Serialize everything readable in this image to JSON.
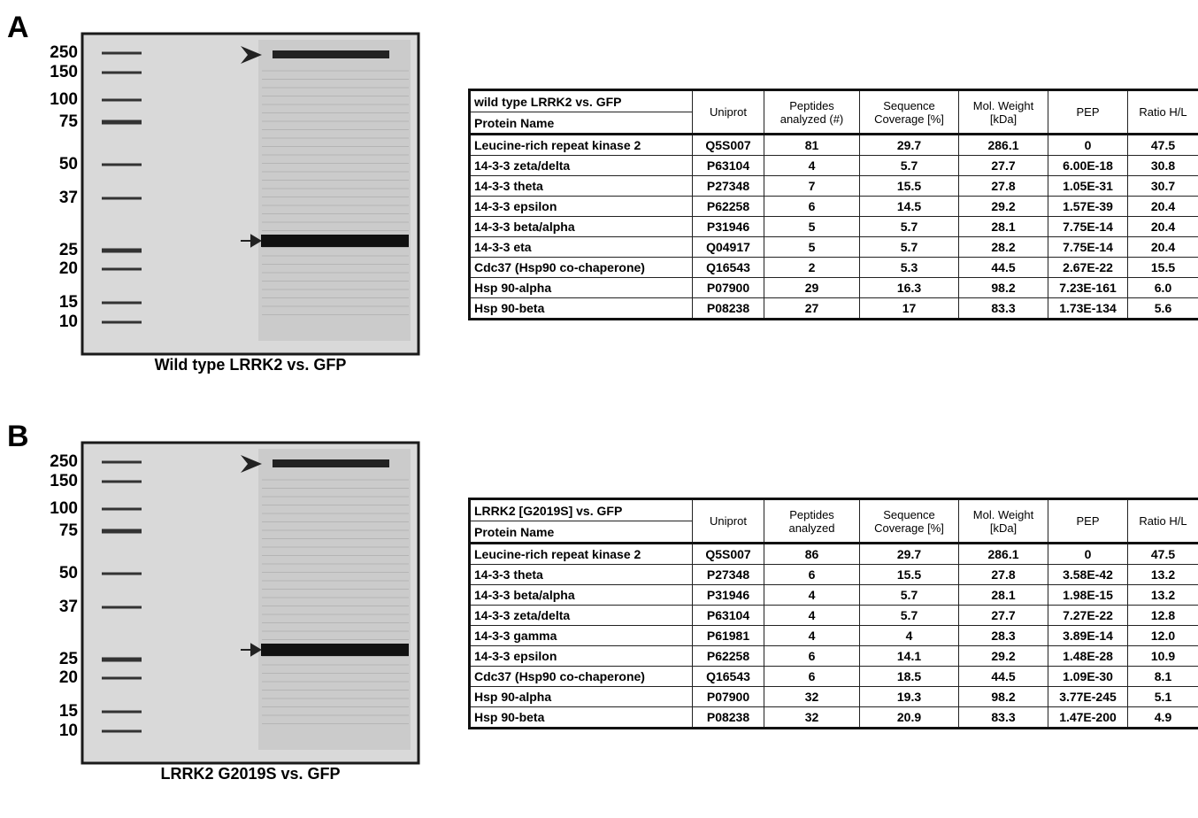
{
  "panels": [
    {
      "label": "A",
      "markers": [
        250,
        150,
        100,
        75,
        50,
        37,
        25,
        20,
        15,
        10
      ],
      "caption": "Wild type LRRK2 vs. GFP",
      "table": {
        "title": "wild type LRRK2 vs. GFP",
        "name_header": "Protein Name",
        "headers": [
          "Uniprot",
          "Peptides analyzed (#)",
          "Sequence Coverage [%]",
          "Mol. Weight [kDa]",
          "PEP",
          "Ratio H/L"
        ],
        "rows": [
          [
            "Leucine-rich repeat kinase 2",
            "Q5S007",
            "81",
            "29.7",
            "286.1",
            "0",
            "47.5"
          ],
          [
            "14-3-3 zeta/delta",
            "P63104",
            "4",
            "5.7",
            "27.7",
            "6.00E-18",
            "30.8"
          ],
          [
            "14-3-3 theta",
            "P27348",
            "7",
            "15.5",
            "27.8",
            "1.05E-31",
            "30.7"
          ],
          [
            "14-3-3 epsilon",
            "P62258",
            "6",
            "14.5",
            "29.2",
            "1.57E-39",
            "20.4"
          ],
          [
            "14-3-3 beta/alpha",
            "P31946",
            "5",
            "5.7",
            "28.1",
            "7.75E-14",
            "20.4"
          ],
          [
            "14-3-3 eta",
            "Q04917",
            "5",
            "5.7",
            "28.2",
            "7.75E-14",
            "20.4"
          ],
          [
            "Cdc37 (Hsp90 co-chaperone)",
            "Q16543",
            "2",
            "5.3",
            "44.5",
            "2.67E-22",
            "15.5"
          ],
          [
            "Hsp 90-alpha",
            "P07900",
            "29",
            "16.3",
            "98.2",
            "7.23E-161",
            "6.0"
          ],
          [
            "Hsp 90-beta",
            "P08238",
            "27",
            "17",
            "83.3",
            "1.73E-134",
            "5.6"
          ]
        ]
      }
    },
    {
      "label": "B",
      "markers": [
        250,
        150,
        100,
        75,
        50,
        37,
        25,
        20,
        15,
        10
      ],
      "caption": "LRRK2 G2019S vs. GFP",
      "table": {
        "title": "LRRK2 [G2019S] vs. GFP",
        "name_header": "Protein Name",
        "headers": [
          "Uniprot",
          "Peptides analyzed",
          "Sequence Coverage [%]",
          "Mol. Weight [kDa]",
          "PEP",
          "Ratio H/L"
        ],
        "rows": [
          [
            "Leucine-rich repeat kinase 2",
            "Q5S007",
            "86",
            "29.7",
            "286.1",
            "0",
            "47.5"
          ],
          [
            "14-3-3 theta",
            "P27348",
            "6",
            "15.5",
            "27.8",
            "3.58E-42",
            "13.2"
          ],
          [
            "14-3-3 beta/alpha",
            "P31946",
            "4",
            "5.7",
            "28.1",
            "1.98E-15",
            "13.2"
          ],
          [
            "14-3-3 zeta/delta",
            "P63104",
            "4",
            "5.7",
            "27.7",
            "7.27E-22",
            "12.8"
          ],
          [
            "14-3-3 gamma",
            "P61981",
            "4",
            "4",
            "28.3",
            "3.89E-14",
            "12.0"
          ],
          [
            "14-3-3 epsilon",
            "P62258",
            "6",
            "14.1",
            "29.2",
            "1.48E-28",
            "10.9"
          ],
          [
            "Cdc37 (Hsp90 co-chaperone)",
            "Q16543",
            "6",
            "18.5",
            "44.5",
            "1.09E-30",
            "8.1"
          ],
          [
            "Hsp 90-alpha",
            "P07900",
            "32",
            "19.3",
            "98.2",
            "3.77E-245",
            "5.1"
          ],
          [
            "Hsp 90-beta",
            "P08238",
            "32",
            "20.9",
            "83.3",
            "1.47E-200",
            "4.9"
          ]
        ]
      }
    }
  ]
}
